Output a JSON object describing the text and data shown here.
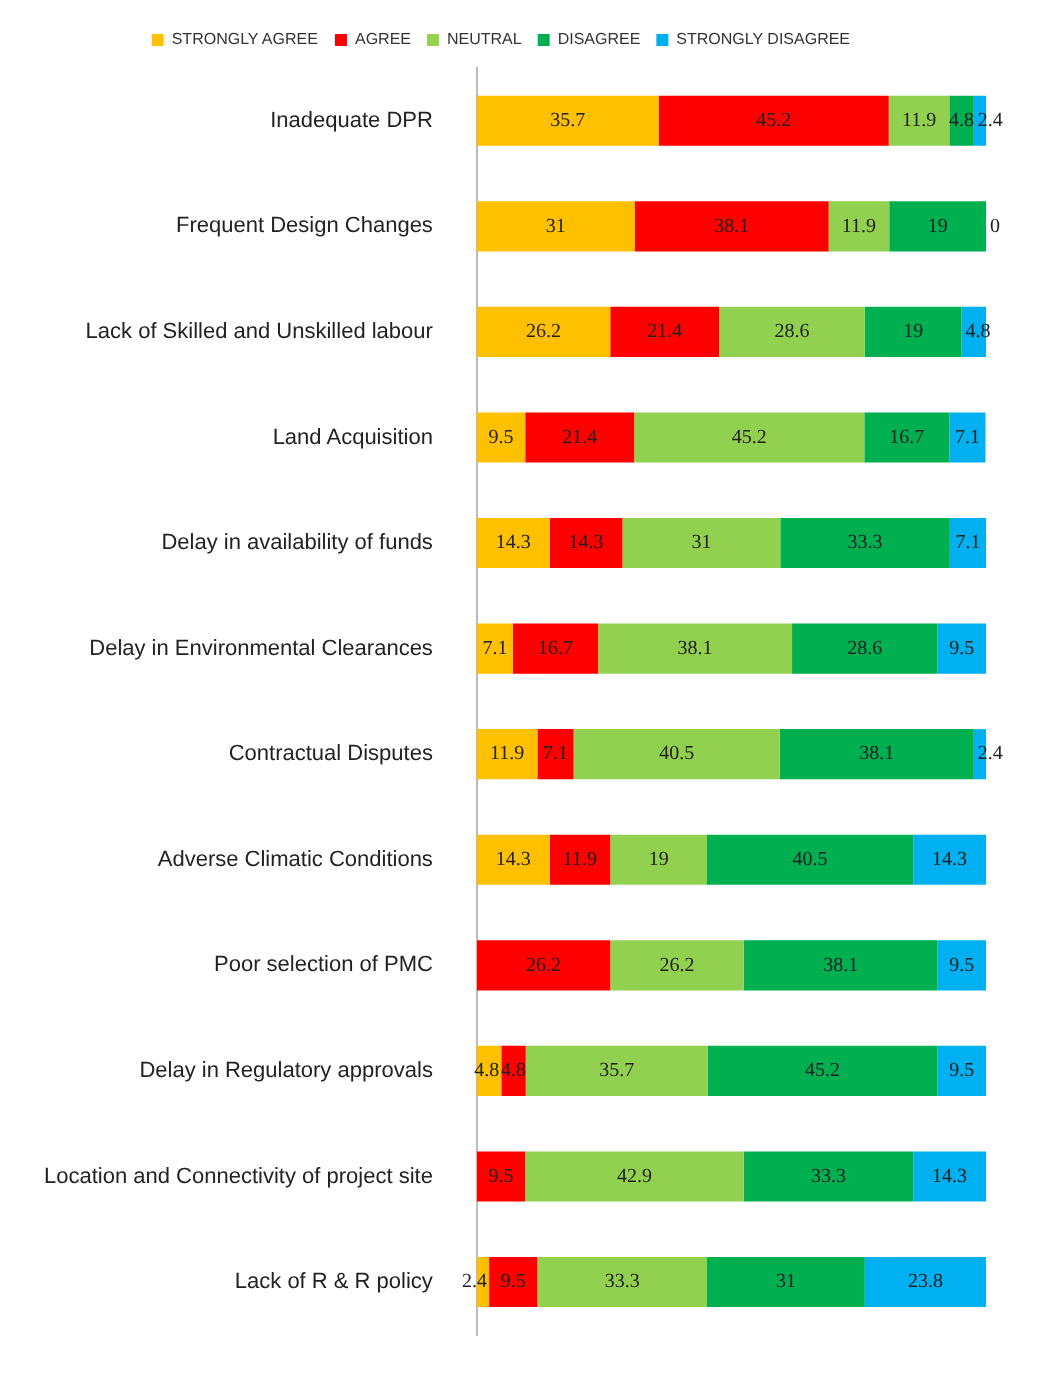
{
  "chart_data": {
    "type": "bar",
    "orientation": "horizontal",
    "stacked": true,
    "data_labels": true,
    "legend": "top",
    "grid": false,
    "tick_labels": "y",
    "xlim": [
      0,
      100
    ],
    "categories": [
      "Inadequate DPR",
      "Frequent Design Changes",
      "Lack of Skilled and Unskilled labour",
      "Land Acquisition",
      "Delay in availability of funds",
      "Delay in Environmental Clearances",
      "Contractual Disputes",
      "Adverse Climatic Conditions",
      "Poor selection of PMC",
      "Delay in Regulatory approvals",
      "Location and Connectivity of project site",
      "Lack of R & R policy"
    ],
    "series": [
      {
        "name": "STRONGLY AGREE",
        "color": "#ffc000",
        "values": [
          35.7,
          31,
          26.2,
          9.5,
          14.3,
          7.1,
          11.9,
          14.3,
          0,
          4.8,
          0,
          2.4
        ],
        "value_labels": [
          "35.7",
          "31",
          "26.2",
          "9.5",
          "14.3",
          "7.1",
          "11.9",
          "14.3",
          null,
          "4.8",
          null,
          "2.4"
        ]
      },
      {
        "name": "AGREE",
        "color": "#ff0000",
        "values": [
          45.2,
          38.1,
          21.4,
          21.4,
          14.3,
          16.7,
          7.1,
          11.9,
          26.2,
          4.8,
          9.5,
          9.5
        ]
      },
      {
        "name": "NEUTRAL",
        "color": "#92d050",
        "values": [
          11.9,
          11.9,
          28.6,
          45.2,
          31,
          38.1,
          40.5,
          19,
          26.2,
          35.7,
          42.9,
          33.3
        ]
      },
      {
        "name": "DISAGREE",
        "color": "#00b050",
        "values": [
          4.8,
          19,
          19,
          16.7,
          33.3,
          28.6,
          38.1,
          40.5,
          38.1,
          45.2,
          33.3,
          31
        ]
      },
      {
        "name": "STRONGLY DISAGREE",
        "color": "#00b0f0",
        "values": [
          2.4,
          0,
          4.8,
          7.1,
          7.1,
          9.5,
          2.4,
          14.3,
          9.5,
          9.5,
          14.3,
          23.8
        ]
      }
    ]
  }
}
